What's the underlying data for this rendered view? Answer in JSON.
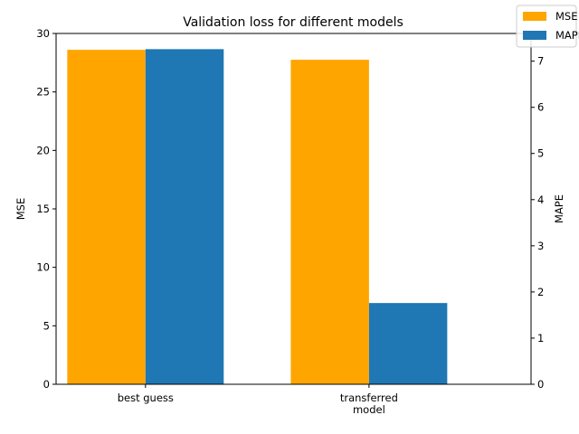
{
  "chart_data": {
    "type": "bar",
    "title": "Validation loss for different models",
    "categories": [
      "best guess",
      "transferred\nmodel"
    ],
    "series": [
      {
        "name": "MSE",
        "axis": "left",
        "color": "#ffa500",
        "values": [
          28.6,
          27.75
        ]
      },
      {
        "name": "MAPE",
        "axis": "right",
        "color": "#1f77b4",
        "values": [
          7.26,
          1.76
        ]
      }
    ],
    "ylabel": "MSE",
    "y2label": "MAPE",
    "ylim": [
      0,
      30
    ],
    "y2lim": [
      0,
      7.6
    ],
    "yticks": [
      0,
      5,
      10,
      15,
      20,
      25,
      30
    ],
    "y2ticks": [
      0,
      1,
      2,
      3,
      4,
      5,
      6,
      7
    ],
    "grid": false,
    "legend_placement": "top-right"
  }
}
